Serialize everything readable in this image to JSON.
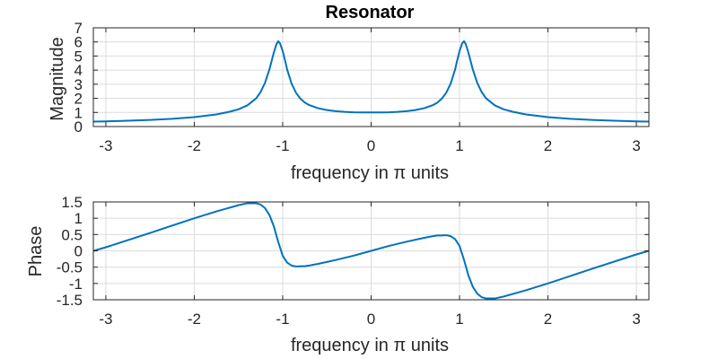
{
  "chart_data": [
    {
      "type": "line",
      "title": "Resonator",
      "xlabel": "frequency in π units",
      "ylabel": "Magnitude",
      "xlim": [
        -3.14159,
        3.14159
      ],
      "ylim": [
        0,
        7
      ],
      "xticks": [
        -3,
        -2,
        -1,
        0,
        1,
        2,
        3
      ],
      "xtick_labels": [
        "-3",
        "-2",
        "-1",
        "0",
        "1",
        "2",
        "3"
      ],
      "yticks": [
        0,
        1,
        2,
        3,
        4,
        5,
        6,
        7
      ],
      "ytick_labels": [
        "0",
        "1",
        "2",
        "3",
        "4",
        "5",
        "6",
        "7"
      ],
      "grid": true,
      "color": "#0072BD",
      "series": [
        {
          "x": [
            -3.14,
            -3.0,
            -2.75,
            -2.5,
            -2.25,
            -2.0,
            -1.75,
            -1.6,
            -1.5,
            -1.4,
            -1.3,
            -1.25,
            -1.2,
            -1.15,
            -1.1,
            -1.07,
            -1.05,
            -1.03,
            -1.0,
            -0.97,
            -0.95,
            -0.9,
            -0.85,
            -0.8,
            -0.75,
            -0.7,
            -0.6,
            -0.5,
            -0.4,
            -0.3,
            -0.2,
            -0.1,
            0.0,
            0.1,
            0.2,
            0.3,
            0.4,
            0.5,
            0.6,
            0.7,
            0.75,
            0.8,
            0.85,
            0.9,
            0.95,
            0.97,
            1.0,
            1.03,
            1.05,
            1.07,
            1.1,
            1.15,
            1.2,
            1.25,
            1.3,
            1.4,
            1.5,
            1.6,
            1.75,
            2.0,
            2.25,
            2.5,
            2.75,
            3.0,
            3.14
          ],
          "y": [
            0.35,
            0.37,
            0.41,
            0.47,
            0.55,
            0.67,
            0.86,
            1.05,
            1.22,
            1.5,
            2.0,
            2.45,
            3.1,
            4.05,
            5.25,
            5.85,
            6.05,
            5.9,
            5.35,
            4.6,
            4.05,
            3.05,
            2.4,
            1.98,
            1.7,
            1.52,
            1.3,
            1.17,
            1.09,
            1.04,
            1.01,
            1.0,
            1.0,
            1.0,
            1.01,
            1.04,
            1.09,
            1.17,
            1.3,
            1.52,
            1.7,
            1.98,
            2.4,
            3.05,
            4.05,
            4.6,
            5.35,
            5.9,
            6.05,
            5.85,
            5.25,
            4.05,
            3.1,
            2.45,
            2.0,
            1.5,
            1.22,
            1.05,
            0.86,
            0.67,
            0.55,
            0.47,
            0.41,
            0.37,
            0.35
          ]
        }
      ]
    },
    {
      "type": "line",
      "title": "",
      "xlabel": "frequency in π units",
      "ylabel": "Phase",
      "xlim": [
        -3.14159,
        3.14159
      ],
      "ylim": [
        -1.5,
        1.5
      ],
      "xticks": [
        -3,
        -2,
        -1,
        0,
        1,
        2,
        3
      ],
      "xtick_labels": [
        "-3",
        "-2",
        "-1",
        "0",
        "1",
        "2",
        "3"
      ],
      "yticks": [
        -1.5,
        -1,
        -0.5,
        0,
        0.5,
        1,
        1.5
      ],
      "ytick_labels": [
        "-1.5",
        "-1",
        "-0.5",
        "0",
        "0.5",
        "1",
        "1.5"
      ],
      "grid": true,
      "color": "#0072BD",
      "series": [
        {
          "x": [
            -3.14,
            -3.0,
            -2.5,
            -2.0,
            -1.75,
            -1.5,
            -1.4,
            -1.3,
            -1.25,
            -1.2,
            -1.15,
            -1.1,
            -1.05,
            -1.0,
            -0.95,
            -0.9,
            -0.85,
            -0.8,
            -0.75,
            -0.7,
            -0.6,
            -0.4,
            -0.2,
            0.0,
            0.2,
            0.4,
            0.6,
            0.7,
            0.75,
            0.8,
            0.85,
            0.9,
            0.95,
            1.0,
            1.05,
            1.1,
            1.15,
            1.2,
            1.25,
            1.3,
            1.4,
            1.5,
            1.75,
            2.0,
            2.5,
            3.0,
            3.14
          ],
          "y": [
            0.0,
            0.11,
            0.55,
            1.0,
            1.21,
            1.4,
            1.46,
            1.46,
            1.42,
            1.31,
            1.1,
            0.75,
            0.27,
            -0.15,
            -0.36,
            -0.45,
            -0.48,
            -0.47,
            -0.47,
            -0.45,
            -0.4,
            -0.28,
            -0.15,
            0.0,
            0.15,
            0.28,
            0.4,
            0.45,
            0.47,
            0.47,
            0.48,
            0.45,
            0.36,
            0.15,
            -0.27,
            -0.75,
            -1.1,
            -1.31,
            -1.42,
            -1.46,
            -1.46,
            -1.4,
            -1.21,
            -1.0,
            -0.55,
            -0.11,
            0.0
          ]
        }
      ]
    }
  ]
}
